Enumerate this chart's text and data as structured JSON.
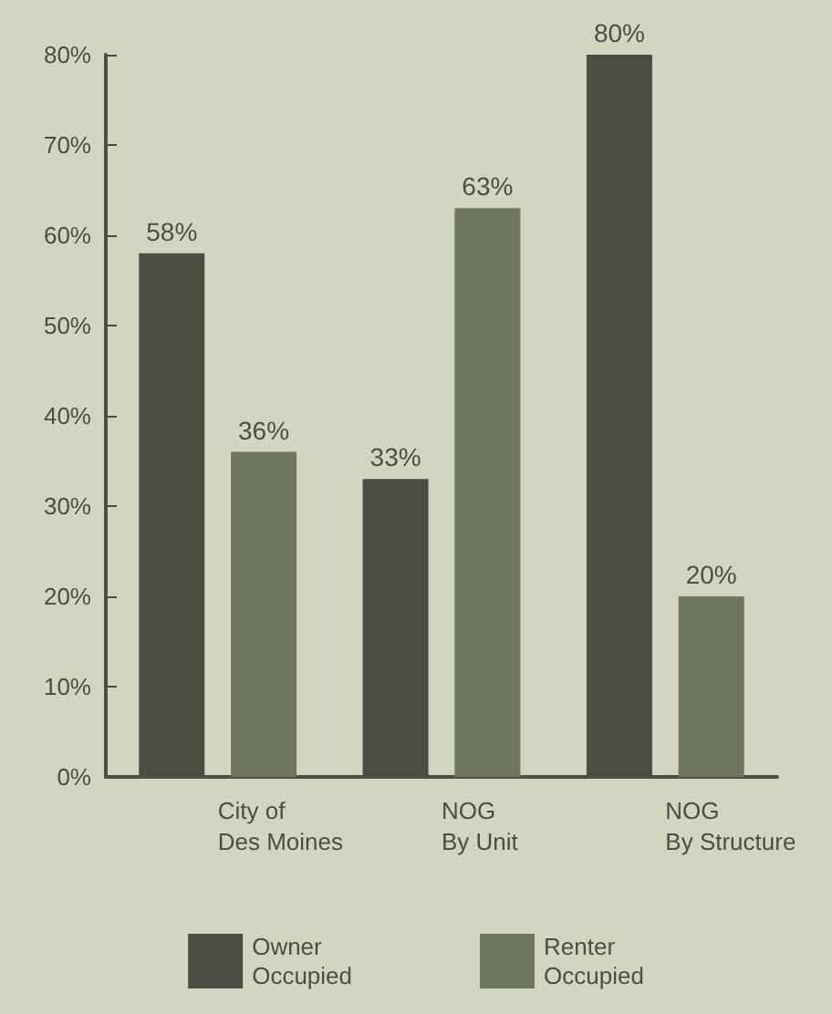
{
  "chart_data": {
    "type": "bar",
    "categories": [
      "City of\nDes Moines",
      "NOG\nBy Unit",
      "NOG\nBy Structure"
    ],
    "series": [
      {
        "name": "Owner\nOccupied",
        "color": "#4a4e44",
        "values": [
          58,
          33,
          80
        ],
        "value_labels": [
          "58%",
          "33%",
          "80%"
        ]
      },
      {
        "name": "Renter\nOccupied",
        "color": "#6e775c",
        "values": [
          36,
          63,
          20
        ],
        "value_labels": [
          "36%",
          "63%",
          "20%"
        ]
      }
    ],
    "ylim": [
      0,
      80
    ],
    "yticks": [
      {
        "value": 0,
        "label": "0%"
      },
      {
        "value": 10,
        "label": "10%"
      },
      {
        "value": 20,
        "label": "20%"
      },
      {
        "value": 30,
        "label": "30%"
      },
      {
        "value": 40,
        "label": "40%"
      },
      {
        "value": 50,
        "label": "50%"
      },
      {
        "value": 60,
        "label": "60%"
      },
      {
        "value": 70,
        "label": "70%"
      },
      {
        "value": 80,
        "label": "80%"
      }
    ],
    "grid": false,
    "legend": "bottom"
  }
}
